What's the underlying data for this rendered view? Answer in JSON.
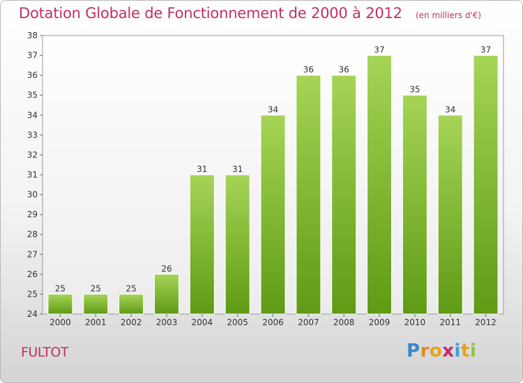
{
  "title": "Dotation Globale de Fonctionnement de 2000 à 2012",
  "unit": "(en milliers d'€)",
  "commune": "FULTOT",
  "logo": {
    "letters": [
      "P",
      "r",
      "o",
      "x",
      "i",
      "t",
      "i"
    ],
    "colors": [
      "#3a86c8",
      "#e08a1e",
      "#e5a21c",
      "#c42870",
      "#3aa0d8",
      "#e5a21c",
      "#8cc63f"
    ]
  },
  "colors": {
    "bar_top": "#a6d457",
    "bar_bottom": "#5e9b14",
    "title": "#c23060",
    "grid": "#dddddd"
  },
  "chart_data": {
    "type": "bar",
    "title": "Dotation Globale de Fonctionnement de 2000 à 2012",
    "subtitle": "(en milliers d'€)",
    "categories": [
      "2000",
      "2001",
      "2002",
      "2003",
      "2004",
      "2005",
      "2006",
      "2007",
      "2008",
      "2009",
      "2010",
      "2011",
      "2012"
    ],
    "values": [
      25,
      25,
      25,
      26,
      31,
      31,
      34,
      36,
      36,
      37,
      35,
      34,
      37
    ],
    "ylim": [
      24,
      38
    ],
    "yticks": [
      24,
      25,
      26,
      27,
      28,
      29,
      30,
      31,
      32,
      33,
      34,
      35,
      36,
      37,
      38
    ],
    "grid": false,
    "legend": "none"
  }
}
